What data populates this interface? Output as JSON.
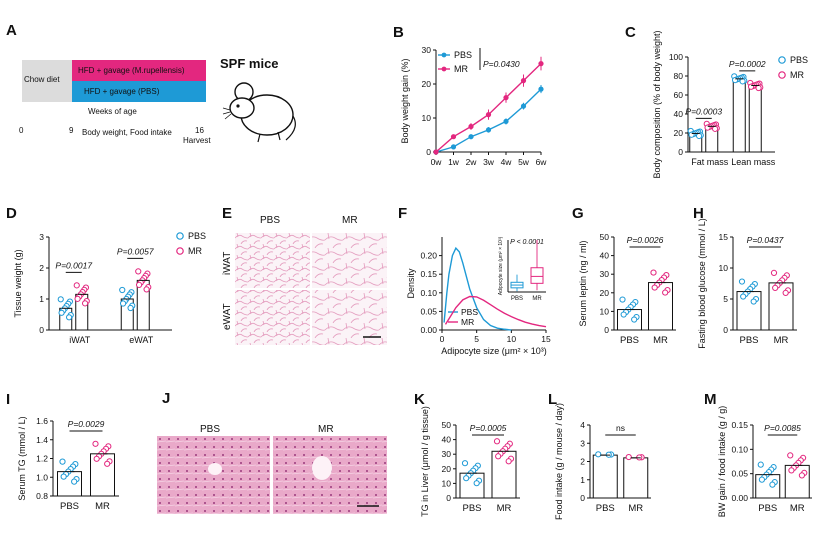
{
  "colors": {
    "pbs": "#1e9ad6",
    "mr": "#e3277f",
    "chow": "#dcdcdc",
    "black": "#111111",
    "histo": "#e9a9c9"
  },
  "panels": {
    "A": {
      "letter": "A",
      "chow_label": "Chow diet",
      "mr_label": "HFD + gavage (M.rupellensis)",
      "pbs_label": "HFD + gavage (PBS)",
      "weeks_label": "Weeks of age",
      "ticks": [
        "0",
        "9",
        "16"
      ],
      "measure_label": "Body weight, Food intake",
      "harvest_label": "Harvest",
      "spf_label": "SPF mice"
    },
    "E": {
      "letter": "E",
      "col1": "PBS",
      "col2": "MR",
      "row1": "iWAT",
      "row2": "eWAT"
    },
    "J": {
      "letter": "J",
      "col1": "PBS",
      "col2": "MR"
    }
  },
  "chart_data": [
    {
      "id": "B",
      "type": "line",
      "x": [
        "0w",
        "1w",
        "2w",
        "3w",
        "4w",
        "5w",
        "6w"
      ],
      "ylabel": "Body weight gain (%)",
      "ylim": [
        0,
        30
      ],
      "yticks": [
        0,
        10,
        20,
        30
      ],
      "series": [
        {
          "name": "PBS",
          "color": "#1e9ad6",
          "values": [
            0,
            1.5,
            4.5,
            6.5,
            9,
            13.5,
            18.5
          ],
          "errors": [
            0,
            0.4,
            0.7,
            0.8,
            0.9,
            1,
            1.2
          ]
        },
        {
          "name": "MR",
          "color": "#e3277f",
          "values": [
            0,
            4.5,
            7.5,
            11,
            16,
            21,
            26
          ],
          "errors": [
            0,
            0.6,
            1,
            1.5,
            1.5,
            1.8,
            2
          ]
        }
      ],
      "legend": "top-left",
      "annotation": "P=0.0430"
    },
    {
      "id": "C",
      "type": "bar",
      "categories": [
        "Fat mass",
        "Lean mass"
      ],
      "ylabel": "Body composition (% of body weight)",
      "ylim": [
        0,
        100
      ],
      "yticks": [
        0,
        20,
        40,
        60,
        80,
        100
      ],
      "series": [
        {
          "name": "PBS",
          "values": [
            19.5,
            77
          ]
        },
        {
          "name": "MR",
          "values": [
            27,
            70
          ]
        }
      ],
      "pvalues": [
        "P=0.0003",
        "P=0.0002"
      ],
      "legend": "top-right"
    },
    {
      "id": "D",
      "type": "bar",
      "categories": [
        "iWAT",
        "eWAT"
      ],
      "ylabel": "Tissue weight (g)",
      "ylim": [
        0,
        3
      ],
      "yticks": [
        0,
        1,
        2,
        3
      ],
      "series": [
        {
          "name": "PBS",
          "values": [
            0.7,
            1.0
          ]
        },
        {
          "name": "MR",
          "values": [
            1.15,
            1.6
          ]
        }
      ],
      "pvalues": [
        "P=0.0017",
        "P=0.0057"
      ],
      "legend": "top-right"
    },
    {
      "id": "F",
      "type": "line",
      "xlabel": "Adipocyte size (μm² × 10³)",
      "ylabel": "Density",
      "xlim": [
        0,
        15
      ],
      "xticks": [
        0,
        5,
        10,
        15
      ],
      "ylim": [
        0,
        0.25
      ],
      "yticks": [
        0.0,
        0.05,
        0.1,
        0.15,
        0.2
      ],
      "series": [
        {
          "name": "PBS",
          "x": [
            0.3,
            0.7,
            1,
            1.5,
            2,
            2.5,
            3,
            3.5,
            4,
            5,
            6,
            7,
            8,
            9,
            10
          ],
          "values": [
            0.02,
            0.1,
            0.15,
            0.2,
            0.22,
            0.21,
            0.18,
            0.145,
            0.11,
            0.06,
            0.028,
            0.012,
            0.005,
            0.002,
            0
          ]
        },
        {
          "name": "MR",
          "x": [
            0.5,
            1,
            2,
            3,
            4,
            5,
            6,
            7,
            8,
            9,
            10,
            11,
            12,
            13,
            14,
            15
          ],
          "values": [
            0.015,
            0.03,
            0.06,
            0.081,
            0.09,
            0.089,
            0.08,
            0.068,
            0.056,
            0.045,
            0.036,
            0.028,
            0.021,
            0.016,
            0.012,
            0.009
          ]
        }
      ],
      "inset": {
        "type": "box",
        "ylabel": "Adipocyte size (μm² × 10³)",
        "categories": [
          "PBS",
          "MR"
        ],
        "pvalue": "P < 0.0001",
        "boxes": [
          {
            "min": 0.2,
            "q1": 1.2,
            "median": 2,
            "q3": 2.8,
            "max": 5,
            "color": "#1e9ad6"
          },
          {
            "min": 0.5,
            "q1": 2.5,
            "median": 4.5,
            "q3": 7,
            "max": 15,
            "color": "#e3277f"
          }
        ]
      },
      "legend": "bottom-left"
    },
    {
      "id": "G",
      "type": "bar",
      "categories": [
        "PBS",
        "MR"
      ],
      "ylabel": "Serum leptin (ng / ml)",
      "ylim": [
        0,
        50
      ],
      "yticks": [
        0,
        10,
        20,
        30,
        40,
        50
      ],
      "values": [
        11,
        25.5
      ],
      "pvalue": "P=0.0026"
    },
    {
      "id": "H",
      "type": "bar",
      "categories": [
        "PBS",
        "MR"
      ],
      "ylabel": "Fasting blood glucose (mmol / L)",
      "ylim": [
        0,
        15
      ],
      "yticks": [
        0,
        5,
        10,
        15
      ],
      "values": [
        6.2,
        7.6
      ],
      "pvalue": "P=0.0437"
    },
    {
      "id": "I",
      "type": "bar",
      "categories": [
        "PBS",
        "MR"
      ],
      "ylabel": "Serum TG (mmol / L)",
      "ylim": [
        0.8,
        1.6
      ],
      "yticks": [
        0.8,
        1.0,
        1.2,
        1.4,
        1.6
      ],
      "values": [
        1.06,
        1.25
      ],
      "pvalue": "P=0.0029"
    },
    {
      "id": "K",
      "type": "bar",
      "categories": [
        "PBS",
        "MR"
      ],
      "ylabel": "TG in Liver (μmol / g tissue)",
      "ylim": [
        0,
        50
      ],
      "yticks": [
        0,
        10,
        20,
        30,
        40,
        50
      ],
      "values": [
        17,
        32
      ],
      "pvalue": "P=0.0005"
    },
    {
      "id": "L",
      "type": "bar",
      "categories": [
        "PBS",
        "MR"
      ],
      "ylabel": "Food intake (g / mouse / day)",
      "ylim": [
        0,
        4
      ],
      "yticks": [
        0,
        1,
        2,
        3,
        4
      ],
      "values": [
        2.35,
        2.2
      ],
      "pvalue": "ns"
    },
    {
      "id": "M",
      "type": "bar",
      "categories": [
        "PBS",
        "MR"
      ],
      "ylabel": "BW gain / food intake (g / g)",
      "ylim": [
        0,
        0.15
      ],
      "yticks": [
        0.0,
        0.05,
        0.1,
        0.15
      ],
      "values": [
        0.048,
        0.067
      ],
      "pvalue": "P=0.0085"
    }
  ]
}
